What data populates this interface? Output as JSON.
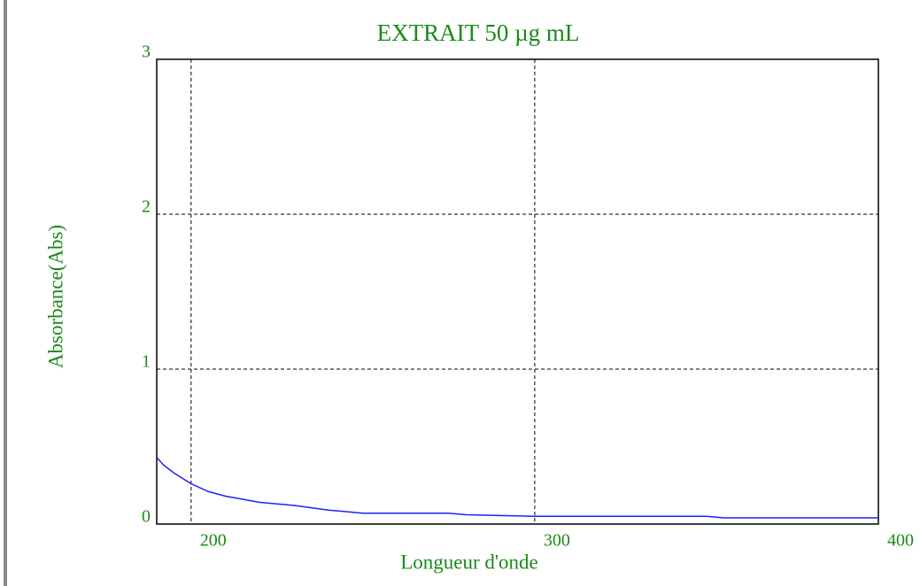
{
  "chart_data": {
    "type": "line",
    "title": "EXTRAIT 50 µg mL",
    "x_label": "Longueur d'onde",
    "y_label": "Absorbance(Abs)",
    "x": [
      190,
      192,
      195,
      200,
      205,
      210,
      220,
      230,
      240,
      250,
      275,
      280,
      300,
      350,
      355,
      400
    ],
    "series": [
      {
        "name": "EXTRAIT 50 µg mL",
        "color": "#1f1fff",
        "values": [
          0.43,
          0.38,
          0.33,
          0.26,
          0.21,
          0.18,
          0.14,
          0.12,
          0.09,
          0.07,
          0.07,
          0.06,
          0.05,
          0.05,
          0.04,
          0.04
        ]
      }
    ],
    "xlim": [
      190,
      400
    ],
    "ylim": [
      0,
      3
    ],
    "xticks": [
      200,
      300,
      400
    ],
    "yticks": [
      0,
      1,
      2,
      3
    ],
    "grid": true
  }
}
